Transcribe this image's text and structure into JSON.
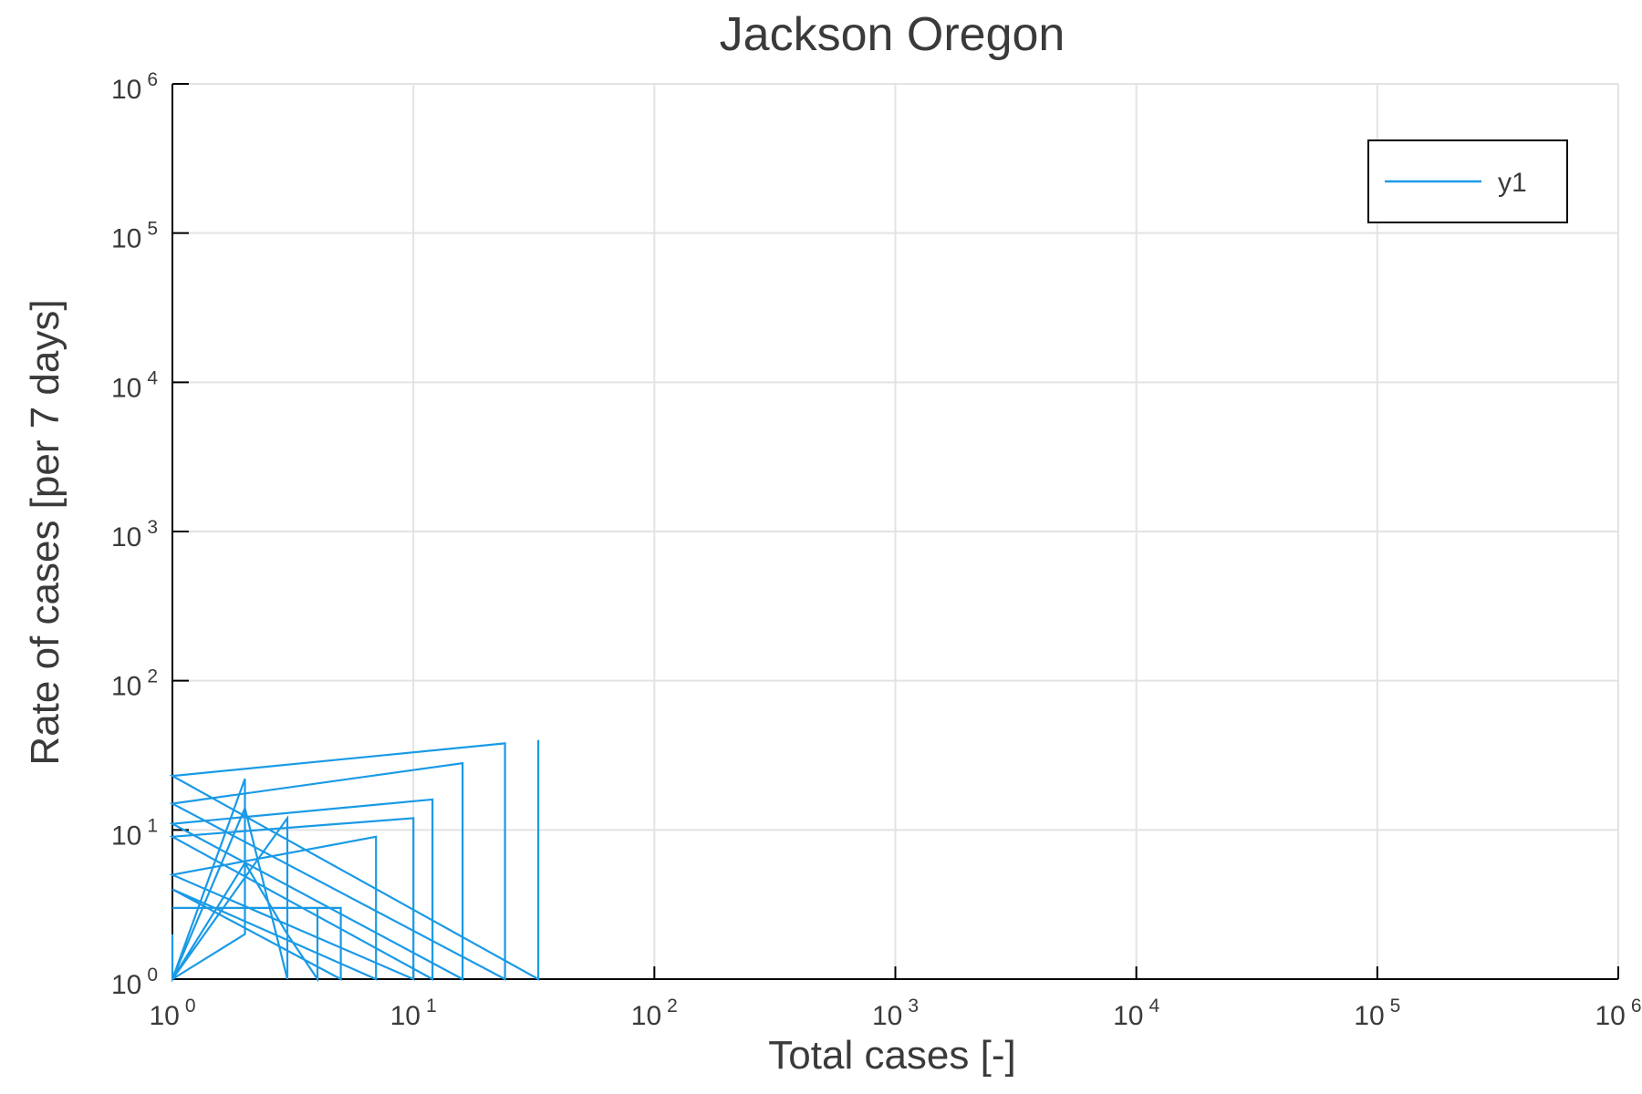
{
  "chart_data": {
    "type": "line",
    "title": "Jackson Oregon",
    "xlabel": "Total cases [-]",
    "ylabel": "Rate of cases [per 7 days]",
    "xscale": "log",
    "yscale": "log",
    "xlim": [
      1,
      1000000
    ],
    "ylim": [
      1,
      1000000
    ],
    "xticks": [
      {
        "base": "10",
        "exp": "0"
      },
      {
        "base": "10",
        "exp": "1"
      },
      {
        "base": "10",
        "exp": "2"
      },
      {
        "base": "10",
        "exp": "3"
      },
      {
        "base": "10",
        "exp": "4"
      },
      {
        "base": "10",
        "exp": "5"
      },
      {
        "base": "10",
        "exp": "6"
      }
    ],
    "yticks": [
      {
        "base": "10",
        "exp": "0"
      },
      {
        "base": "10",
        "exp": "1"
      },
      {
        "base": "10",
        "exp": "2"
      },
      {
        "base": "10",
        "exp": "3"
      },
      {
        "base": "10",
        "exp": "4"
      },
      {
        "base": "10",
        "exp": "5"
      },
      {
        "base": "10",
        "exp": "6"
      }
    ],
    "grid": true,
    "legend_position": "top-right",
    "series": [
      {
        "name": "y1",
        "color": "#1a9ae6",
        "x": [
          1,
          2,
          2,
          1,
          2,
          3,
          3,
          1,
          1,
          1,
          2,
          3,
          4,
          4,
          1,
          5,
          5,
          1,
          7,
          7,
          1,
          10,
          10,
          1,
          12,
          12,
          1,
          16,
          16,
          1,
          24,
          24,
          1,
          33,
          33
        ],
        "y": [
          1,
          2,
          22,
          1,
          14,
          1,
          12,
          1,
          2,
          1,
          6,
          2,
          1,
          3,
          3,
          3,
          1,
          4,
          1,
          9,
          5,
          1,
          12,
          9,
          1,
          16,
          11,
          1,
          28,
          15,
          1,
          38,
          23,
          1,
          40
        ]
      }
    ]
  }
}
